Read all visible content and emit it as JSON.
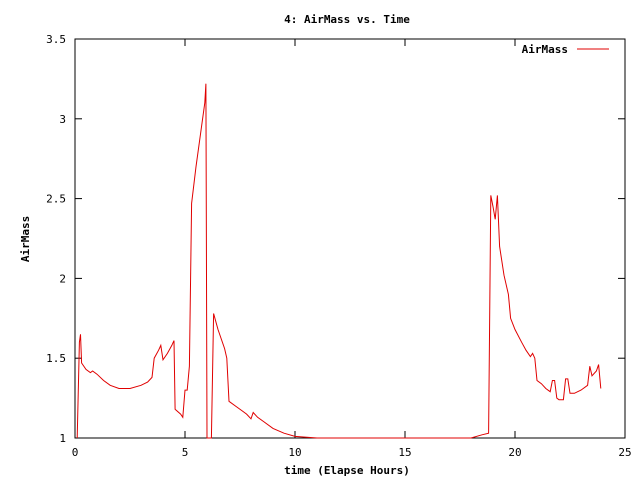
{
  "chart_data": {
    "type": "line",
    "title": "4: AirMass vs. Time",
    "xlabel": "time (Elapse Hours)",
    "ylabel": "AirMass",
    "xlim": [
      0,
      25
    ],
    "ylim": [
      1,
      3.5
    ],
    "xticks": [
      0,
      5,
      10,
      15,
      20,
      25
    ],
    "yticks": [
      1,
      1.5,
      2,
      2.5,
      3,
      3.5
    ],
    "xtick_labels": [
      "0",
      "5",
      "10",
      "15",
      "20",
      "25"
    ],
    "ytick_labels": [
      "1",
      "1.5",
      "2",
      "2.5",
      "3",
      "3.5"
    ],
    "grid": false,
    "legend": "top-right",
    "series": [
      {
        "name": "AirMass",
        "color": "#e00000",
        "points": [
          [
            0.1,
            1.0
          ],
          [
            0.2,
            1.6
          ],
          [
            0.25,
            1.65
          ],
          [
            0.3,
            1.47
          ],
          [
            0.5,
            1.43
          ],
          [
            0.7,
            1.41
          ],
          [
            0.8,
            1.42
          ],
          [
            1.0,
            1.4
          ],
          [
            1.3,
            1.36
          ],
          [
            1.6,
            1.33
          ],
          [
            2.0,
            1.31
          ],
          [
            2.5,
            1.31
          ],
          [
            3.0,
            1.33
          ],
          [
            3.3,
            1.35
          ],
          [
            3.5,
            1.38
          ],
          [
            3.6,
            1.5
          ],
          [
            3.8,
            1.55
          ],
          [
            3.9,
            1.58
          ],
          [
            4.0,
            1.49
          ],
          [
            4.2,
            1.53
          ],
          [
            4.4,
            1.58
          ],
          [
            4.5,
            1.61
          ],
          [
            4.55,
            1.18
          ],
          [
            4.8,
            1.15
          ],
          [
            4.9,
            1.13
          ],
          [
            5.0,
            1.3
          ],
          [
            5.1,
            1.3
          ],
          [
            5.2,
            1.45
          ],
          [
            5.3,
            2.47
          ],
          [
            5.5,
            2.7
          ],
          [
            5.7,
            2.9
          ],
          [
            5.9,
            3.1
          ],
          [
            5.95,
            3.22
          ],
          [
            6.0,
            1.0
          ],
          [
            6.1,
            1.0
          ],
          [
            6.2,
            1.0
          ],
          [
            6.3,
            1.78
          ],
          [
            6.5,
            1.68
          ],
          [
            6.8,
            1.56
          ],
          [
            6.9,
            1.5
          ],
          [
            7.0,
            1.23
          ],
          [
            7.3,
            1.2
          ],
          [
            7.6,
            1.17
          ],
          [
            7.8,
            1.15
          ],
          [
            8.0,
            1.12
          ],
          [
            8.1,
            1.16
          ],
          [
            8.3,
            1.13
          ],
          [
            8.6,
            1.1
          ],
          [
            9.0,
            1.06
          ],
          [
            9.5,
            1.03
          ],
          [
            10.0,
            1.01
          ],
          [
            11.0,
            1.0
          ],
          [
            12.0,
            1.0
          ],
          [
            13.0,
            1.0
          ],
          [
            14.0,
            1.0
          ],
          [
            15.0,
            1.0
          ],
          [
            16.0,
            1.0
          ],
          [
            17.0,
            1.0
          ],
          [
            18.0,
            1.0
          ],
          [
            18.5,
            1.02
          ],
          [
            18.8,
            1.03
          ],
          [
            18.9,
            2.52
          ],
          [
            19.0,
            2.45
          ],
          [
            19.1,
            2.37
          ],
          [
            19.2,
            2.52
          ],
          [
            19.3,
            2.2
          ],
          [
            19.5,
            2.02
          ],
          [
            19.7,
            1.9
          ],
          [
            19.8,
            1.75
          ],
          [
            20.0,
            1.68
          ],
          [
            20.3,
            1.6
          ],
          [
            20.5,
            1.55
          ],
          [
            20.7,
            1.51
          ],
          [
            20.8,
            1.53
          ],
          [
            20.9,
            1.5
          ],
          [
            21.0,
            1.36
          ],
          [
            21.2,
            1.34
          ],
          [
            21.4,
            1.31
          ],
          [
            21.6,
            1.29
          ],
          [
            21.7,
            1.36
          ],
          [
            21.8,
            1.36
          ],
          [
            21.9,
            1.25
          ],
          [
            22.0,
            1.24
          ],
          [
            22.2,
            1.24
          ],
          [
            22.3,
            1.37
          ],
          [
            22.4,
            1.37
          ],
          [
            22.5,
            1.28
          ],
          [
            22.7,
            1.28
          ],
          [
            23.0,
            1.3
          ],
          [
            23.3,
            1.33
          ],
          [
            23.4,
            1.45
          ],
          [
            23.5,
            1.39
          ],
          [
            23.7,
            1.42
          ],
          [
            23.8,
            1.46
          ],
          [
            23.9,
            1.31
          ]
        ]
      }
    ]
  }
}
